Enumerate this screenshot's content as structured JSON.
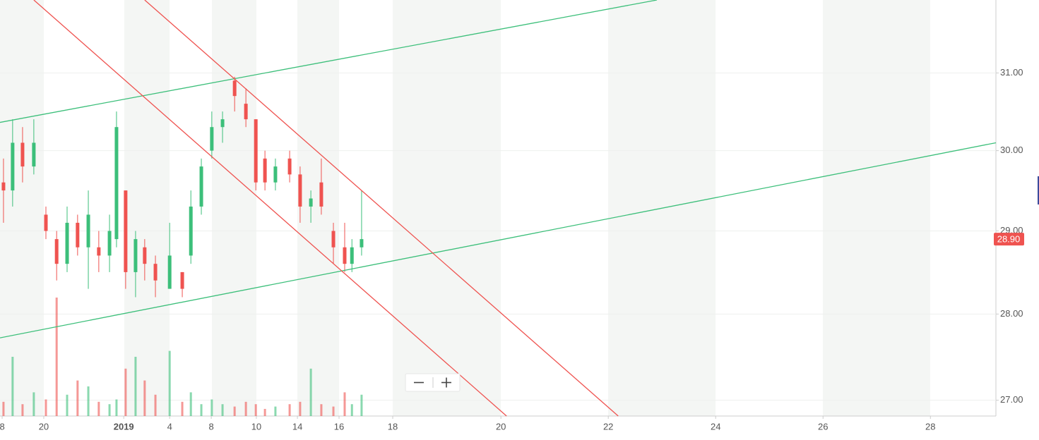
{
  "chart_data": {
    "type": "candlestick",
    "x": [
      0.13,
      0.47,
      0.84,
      1.26,
      1.71,
      2.11,
      2.5,
      2.89,
      3.29,
      3.68,
      4.08,
      4.34,
      4.68,
      5.05,
      5.39,
      5.79,
      6.32,
      6.79,
      7.11,
      7.5,
      7.89,
      8.29,
      8.74,
      9.16,
      9.53,
      9.87,
      10.26,
      10.79,
      11.18,
      11.58,
      11.97,
      12.42,
      12.84,
      13.11,
      13.47
    ],
    "open": [
      29.6,
      29.5,
      30.1,
      29.8,
      29.2,
      28.9,
      28.6,
      29.1,
      28.8,
      28.8,
      28.7,
      28.9,
      29.5,
      28.5,
      28.8,
      28.6,
      28.3,
      28.5,
      28.7,
      29.3,
      30.0,
      30.3,
      30.9,
      30.6,
      30.4,
      29.9,
      29.6,
      29.9,
      29.7,
      29.3,
      29.6,
      29.0,
      28.8,
      28.6,
      28.8
    ],
    "high": [
      29.9,
      30.4,
      30.3,
      30.4,
      29.3,
      29.0,
      29.3,
      29.2,
      29.5,
      29.0,
      29.2,
      30.5,
      29.5,
      29.0,
      28.9,
      28.7,
      29.1,
      28.5,
      29.5,
      29.9,
      30.5,
      30.5,
      30.95,
      30.8,
      30.4,
      30.0,
      29.9,
      30.0,
      29.8,
      29.5,
      29.9,
      29.1,
      29.1,
      28.9,
      29.5
    ],
    "low": [
      29.1,
      29.3,
      29.6,
      29.7,
      28.9,
      28.4,
      28.5,
      28.7,
      28.3,
      28.5,
      28.5,
      28.8,
      28.3,
      28.2,
      28.4,
      28.2,
      28.3,
      28.2,
      28.6,
      29.2,
      29.9,
      30.1,
      30.5,
      30.3,
      29.5,
      29.5,
      29.5,
      29.6,
      29.1,
      29.1,
      29.2,
      28.6,
      28.5,
      28.5,
      28.7
    ],
    "close": [
      29.5,
      30.1,
      29.8,
      30.1,
      29.0,
      28.6,
      29.1,
      28.8,
      29.2,
      28.7,
      29.0,
      30.3,
      28.5,
      28.9,
      28.6,
      28.4,
      28.7,
      28.3,
      29.3,
      29.8,
      30.3,
      30.4,
      30.7,
      30.4,
      29.6,
      29.6,
      29.8,
      29.7,
      29.3,
      29.4,
      29.3,
      28.8,
      28.6,
      28.8,
      28.9
    ],
    "volume": [
      12,
      50,
      10,
      20,
      14,
      100,
      18,
      30,
      25,
      12,
      10,
      14,
      40,
      50,
      30,
      18,
      55,
      12,
      20,
      10,
      14,
      10,
      8,
      12,
      10,
      6,
      8,
      10,
      12,
      40,
      10,
      8,
      20,
      10,
      18
    ],
    "up_color": "#3cbf7a",
    "down_color": "#ef5350",
    "xlim": [
      0,
      37.1
    ],
    "xticks": [
      {
        "value": 0.08,
        "label": "8"
      },
      {
        "value": 1.63,
        "label": "20"
      },
      {
        "value": 4.61,
        "label": "2019"
      },
      {
        "value": 6.32,
        "label": "4"
      },
      {
        "value": 7.87,
        "label": "8"
      },
      {
        "value": 9.55,
        "label": "10"
      },
      {
        "value": 11.08,
        "label": "14"
      },
      {
        "value": 12.63,
        "label": "16"
      },
      {
        "value": 14.63,
        "label": "18"
      },
      {
        "value": 18.66,
        "label": "20"
      },
      {
        "value": 22.66,
        "label": "22"
      },
      {
        "value": 26.66,
        "label": "24"
      },
      {
        "value": 30.66,
        "label": "26"
      },
      {
        "value": 34.66,
        "label": "28"
      }
    ],
    "ylim": [
      26.82,
      31.97
    ],
    "log_scale": true,
    "yticks": [
      {
        "value": 27,
        "label": "27.00"
      },
      {
        "value": 28,
        "label": "28.00"
      },
      {
        "value": 29,
        "label": "29.00"
      },
      {
        "value": 30,
        "label": "30.00"
      },
      {
        "value": 31,
        "label": "31.00"
      }
    ],
    "grid": true,
    "last_price": {
      "value": 28.9,
      "label": "28.90"
    },
    "trend_lines": [
      {
        "color": "#3cbf7a",
        "x": [
          0,
          24.47
        ],
        "y": [
          30.36,
          31.97
        ]
      },
      {
        "color": "#3cbf7a",
        "x": [
          0,
          37.1
        ],
        "y": [
          27.72,
          30.1
        ]
      },
      {
        "color": "#ef5350",
        "x": [
          1.26,
          18.87
        ],
        "y": [
          31.97,
          26.82
        ]
      },
      {
        "color": "#ef5350",
        "x": [
          5.39,
          23.03
        ],
        "y": [
          31.97,
          26.82
        ]
      }
    ]
  }
}
